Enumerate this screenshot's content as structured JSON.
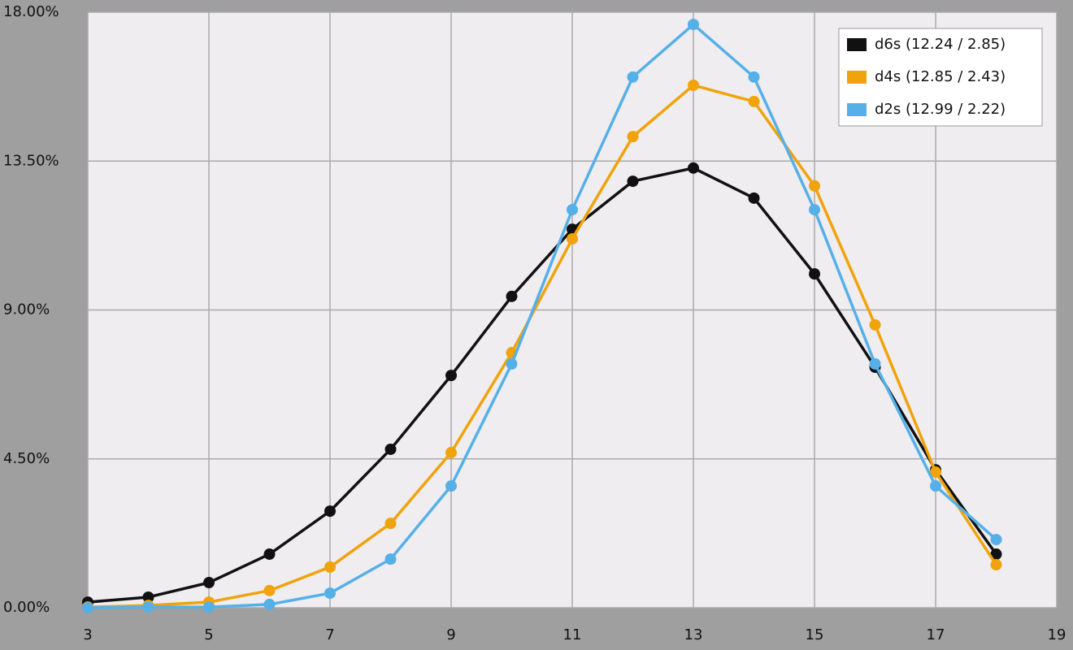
{
  "chart_data": {
    "type": "line",
    "x": [
      3,
      4,
      5,
      6,
      7,
      8,
      9,
      10,
      11,
      12,
      13,
      14,
      15,
      16,
      17,
      18
    ],
    "series": [
      {
        "name": "d6s (12.24 / 2.85)",
        "color": "#111111",
        "values": [
          0.17,
          0.32,
          0.76,
          1.62,
          2.92,
          4.79,
          7.02,
          9.41,
          11.44,
          12.89,
          13.29,
          12.38,
          10.09,
          7.27,
          4.17,
          1.62
        ]
      },
      {
        "name": "d4s (12.85 / 2.43)",
        "color": "#f0a30a",
        "values": [
          0.02,
          0.07,
          0.17,
          0.52,
          1.23,
          2.55,
          4.69,
          7.71,
          11.15,
          14.24,
          15.79,
          15.3,
          12.75,
          8.55,
          4.1,
          1.3
        ]
      },
      {
        "name": "d2s (12.99 / 2.22)",
        "color": "#55b0e8",
        "values": [
          0.0,
          0.02,
          0.02,
          0.1,
          0.44,
          1.47,
          3.68,
          7.37,
          12.03,
          16.04,
          17.63,
          16.04,
          12.03,
          7.37,
          3.68,
          2.06
        ]
      }
    ],
    "xlim": [
      3,
      19
    ],
    "xticks": [
      3,
      5,
      7,
      9,
      11,
      13,
      15,
      17,
      19
    ],
    "ylim": [
      0,
      18
    ],
    "yticks": [
      {
        "value": 0,
        "label": "0.00%"
      },
      {
        "value": 4.5,
        "label": "4.50%"
      },
      {
        "value": 9,
        "label": "9.00%"
      },
      {
        "value": 13.5,
        "label": "13.50%"
      },
      {
        "value": 18,
        "label": "18.00%"
      }
    ],
    "grid": true,
    "legend": "top-right"
  }
}
